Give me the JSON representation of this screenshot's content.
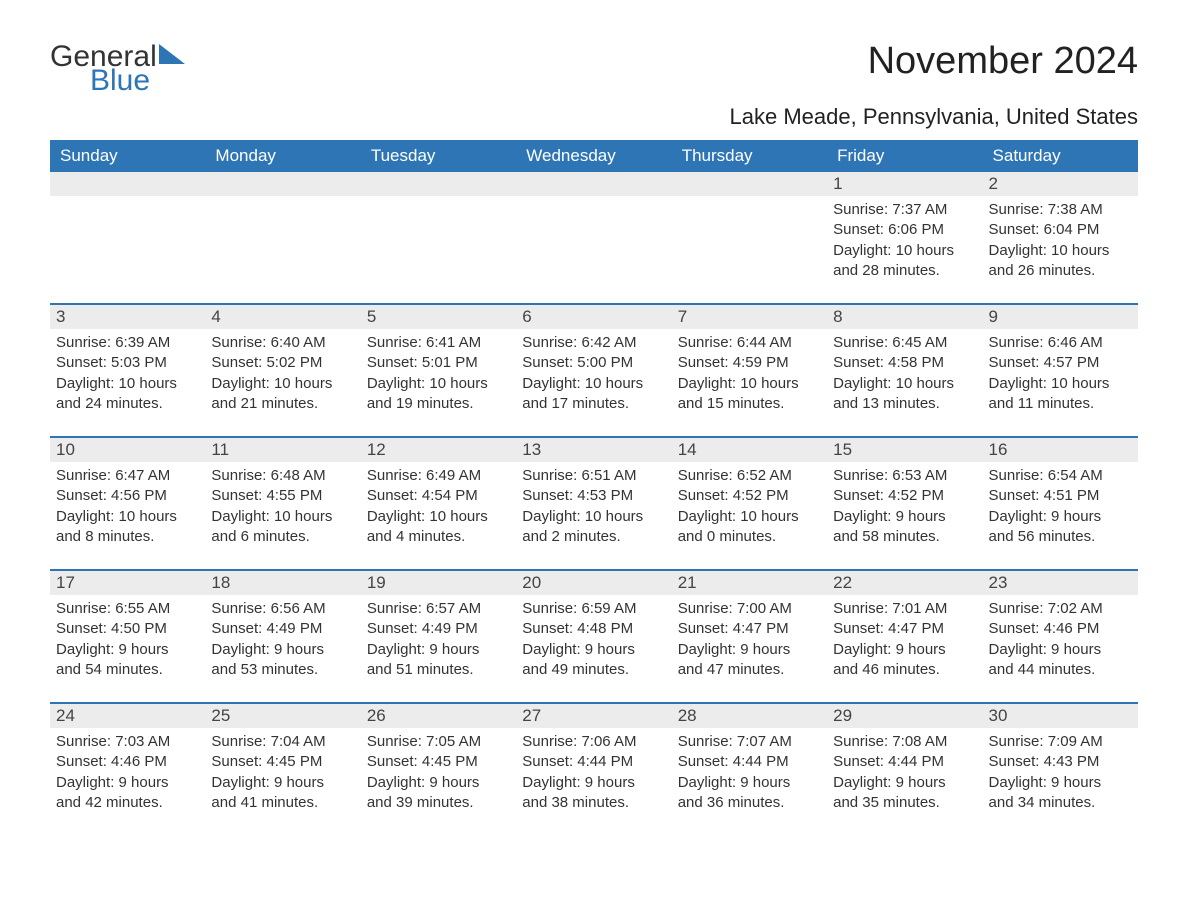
{
  "brand": {
    "word1": "General",
    "word2": "Blue",
    "accent_color": "#2e75b6"
  },
  "title": "November 2024",
  "subtitle": "Lake Meade, Pennsylvania, United States",
  "day_headers": [
    "Sunday",
    "Monday",
    "Tuesday",
    "Wednesday",
    "Thursday",
    "Friday",
    "Saturday"
  ],
  "colors": {
    "header_bg": "#2e75b6",
    "header_text": "#ffffff",
    "daynum_bg": "#ececec",
    "text": "#333333",
    "rule": "#2e75b6",
    "background": "#ffffff"
  },
  "typography": {
    "title_fontsize": 38,
    "subtitle_fontsize": 22,
    "dayhdr_fontsize": 17,
    "daynum_fontsize": 17,
    "detail_fontsize": 15,
    "font_family": "Arial"
  },
  "weeks": [
    [
      null,
      null,
      null,
      null,
      null,
      {
        "n": "1",
        "sunrise": "Sunrise: 7:37 AM",
        "sunset": "Sunset: 6:06 PM",
        "day1": "Daylight: 10 hours",
        "day2": "and 28 minutes."
      },
      {
        "n": "2",
        "sunrise": "Sunrise: 7:38 AM",
        "sunset": "Sunset: 6:04 PM",
        "day1": "Daylight: 10 hours",
        "day2": "and 26 minutes."
      }
    ],
    [
      {
        "n": "3",
        "sunrise": "Sunrise: 6:39 AM",
        "sunset": "Sunset: 5:03 PM",
        "day1": "Daylight: 10 hours",
        "day2": "and 24 minutes."
      },
      {
        "n": "4",
        "sunrise": "Sunrise: 6:40 AM",
        "sunset": "Sunset: 5:02 PM",
        "day1": "Daylight: 10 hours",
        "day2": "and 21 minutes."
      },
      {
        "n": "5",
        "sunrise": "Sunrise: 6:41 AM",
        "sunset": "Sunset: 5:01 PM",
        "day1": "Daylight: 10 hours",
        "day2": "and 19 minutes."
      },
      {
        "n": "6",
        "sunrise": "Sunrise: 6:42 AM",
        "sunset": "Sunset: 5:00 PM",
        "day1": "Daylight: 10 hours",
        "day2": "and 17 minutes."
      },
      {
        "n": "7",
        "sunrise": "Sunrise: 6:44 AM",
        "sunset": "Sunset: 4:59 PM",
        "day1": "Daylight: 10 hours",
        "day2": "and 15 minutes."
      },
      {
        "n": "8",
        "sunrise": "Sunrise: 6:45 AM",
        "sunset": "Sunset: 4:58 PM",
        "day1": "Daylight: 10 hours",
        "day2": "and 13 minutes."
      },
      {
        "n": "9",
        "sunrise": "Sunrise: 6:46 AM",
        "sunset": "Sunset: 4:57 PM",
        "day1": "Daylight: 10 hours",
        "day2": "and 11 minutes."
      }
    ],
    [
      {
        "n": "10",
        "sunrise": "Sunrise: 6:47 AM",
        "sunset": "Sunset: 4:56 PM",
        "day1": "Daylight: 10 hours",
        "day2": "and 8 minutes."
      },
      {
        "n": "11",
        "sunrise": "Sunrise: 6:48 AM",
        "sunset": "Sunset: 4:55 PM",
        "day1": "Daylight: 10 hours",
        "day2": "and 6 minutes."
      },
      {
        "n": "12",
        "sunrise": "Sunrise: 6:49 AM",
        "sunset": "Sunset: 4:54 PM",
        "day1": "Daylight: 10 hours",
        "day2": "and 4 minutes."
      },
      {
        "n": "13",
        "sunrise": "Sunrise: 6:51 AM",
        "sunset": "Sunset: 4:53 PM",
        "day1": "Daylight: 10 hours",
        "day2": "and 2 minutes."
      },
      {
        "n": "14",
        "sunrise": "Sunrise: 6:52 AM",
        "sunset": "Sunset: 4:52 PM",
        "day1": "Daylight: 10 hours",
        "day2": "and 0 minutes."
      },
      {
        "n": "15",
        "sunrise": "Sunrise: 6:53 AM",
        "sunset": "Sunset: 4:52 PM",
        "day1": "Daylight: 9 hours",
        "day2": "and 58 minutes."
      },
      {
        "n": "16",
        "sunrise": "Sunrise: 6:54 AM",
        "sunset": "Sunset: 4:51 PM",
        "day1": "Daylight: 9 hours",
        "day2": "and 56 minutes."
      }
    ],
    [
      {
        "n": "17",
        "sunrise": "Sunrise: 6:55 AM",
        "sunset": "Sunset: 4:50 PM",
        "day1": "Daylight: 9 hours",
        "day2": "and 54 minutes."
      },
      {
        "n": "18",
        "sunrise": "Sunrise: 6:56 AM",
        "sunset": "Sunset: 4:49 PM",
        "day1": "Daylight: 9 hours",
        "day2": "and 53 minutes."
      },
      {
        "n": "19",
        "sunrise": "Sunrise: 6:57 AM",
        "sunset": "Sunset: 4:49 PM",
        "day1": "Daylight: 9 hours",
        "day2": "and 51 minutes."
      },
      {
        "n": "20",
        "sunrise": "Sunrise: 6:59 AM",
        "sunset": "Sunset: 4:48 PM",
        "day1": "Daylight: 9 hours",
        "day2": "and 49 minutes."
      },
      {
        "n": "21",
        "sunrise": "Sunrise: 7:00 AM",
        "sunset": "Sunset: 4:47 PM",
        "day1": "Daylight: 9 hours",
        "day2": "and 47 minutes."
      },
      {
        "n": "22",
        "sunrise": "Sunrise: 7:01 AM",
        "sunset": "Sunset: 4:47 PM",
        "day1": "Daylight: 9 hours",
        "day2": "and 46 minutes."
      },
      {
        "n": "23",
        "sunrise": "Sunrise: 7:02 AM",
        "sunset": "Sunset: 4:46 PM",
        "day1": "Daylight: 9 hours",
        "day2": "and 44 minutes."
      }
    ],
    [
      {
        "n": "24",
        "sunrise": "Sunrise: 7:03 AM",
        "sunset": "Sunset: 4:46 PM",
        "day1": "Daylight: 9 hours",
        "day2": "and 42 minutes."
      },
      {
        "n": "25",
        "sunrise": "Sunrise: 7:04 AM",
        "sunset": "Sunset: 4:45 PM",
        "day1": "Daylight: 9 hours",
        "day2": "and 41 minutes."
      },
      {
        "n": "26",
        "sunrise": "Sunrise: 7:05 AM",
        "sunset": "Sunset: 4:45 PM",
        "day1": "Daylight: 9 hours",
        "day2": "and 39 minutes."
      },
      {
        "n": "27",
        "sunrise": "Sunrise: 7:06 AM",
        "sunset": "Sunset: 4:44 PM",
        "day1": "Daylight: 9 hours",
        "day2": "and 38 minutes."
      },
      {
        "n": "28",
        "sunrise": "Sunrise: 7:07 AM",
        "sunset": "Sunset: 4:44 PM",
        "day1": "Daylight: 9 hours",
        "day2": "and 36 minutes."
      },
      {
        "n": "29",
        "sunrise": "Sunrise: 7:08 AM",
        "sunset": "Sunset: 4:44 PM",
        "day1": "Daylight: 9 hours",
        "day2": "and 35 minutes."
      },
      {
        "n": "30",
        "sunrise": "Sunrise: 7:09 AM",
        "sunset": "Sunset: 4:43 PM",
        "day1": "Daylight: 9 hours",
        "day2": "and 34 minutes."
      }
    ]
  ]
}
